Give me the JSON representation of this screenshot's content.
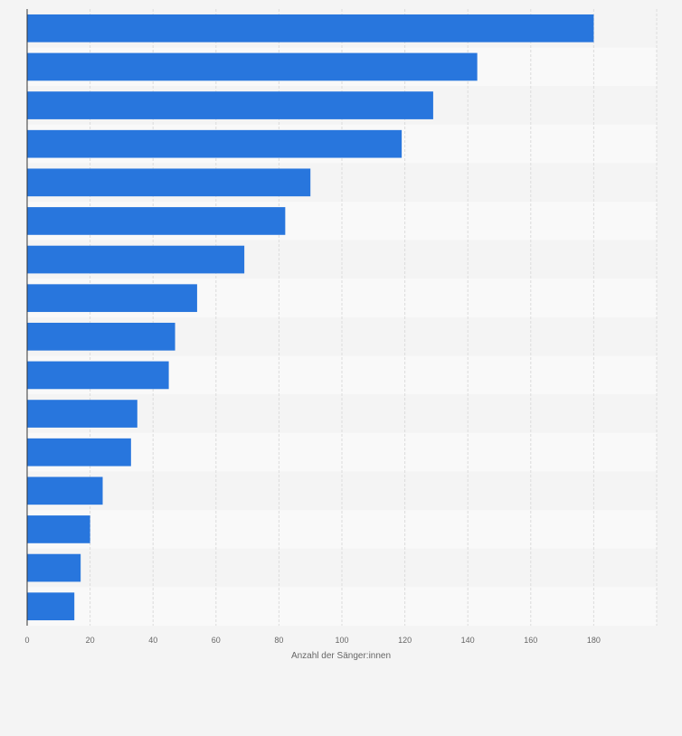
{
  "chart_data": {
    "type": "bar",
    "orientation": "horizontal",
    "categories": [
      "",
      "",
      "",
      "",
      "",
      "",
      "",
      "",
      "",
      "",
      "",
      "",
      "",
      "",
      "",
      ""
    ],
    "values": [
      180,
      143,
      129,
      119,
      90,
      82,
      69,
      54,
      47,
      45,
      35,
      33,
      24,
      20,
      17,
      15
    ],
    "title": "",
    "xlabel": "Anzahl der Sänger:innen",
    "ylabel": "",
    "xlim": [
      0,
      200
    ],
    "xticks": [
      0,
      20,
      40,
      60,
      80,
      100,
      120,
      140,
      160,
      180
    ],
    "grid": true,
    "bar_color": "#2876dd",
    "band_colors": [
      "#f4f4f4",
      "#f9f9f9"
    ],
    "background": "#f4f4f4"
  }
}
